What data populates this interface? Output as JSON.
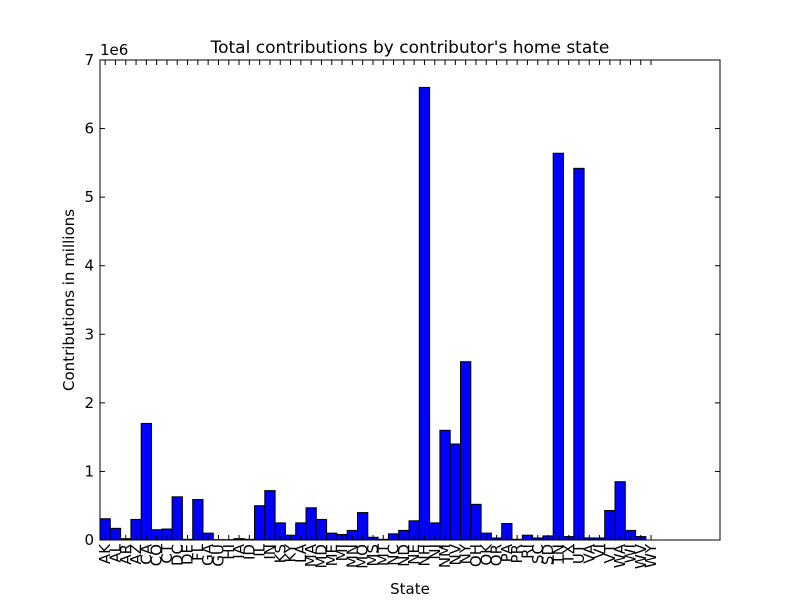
{
  "chart_data": {
    "type": "bar",
    "title": "Total contributions by contributor's home state",
    "xlabel": "State",
    "ylabel": "Contributions in millions",
    "y_offset_label": "1e6",
    "ylim": [
      0,
      7000000
    ],
    "yticks": [
      {
        "value": 0,
        "label": "0"
      },
      {
        "value": 1000000,
        "label": "1"
      },
      {
        "value": 2000000,
        "label": "2"
      },
      {
        "value": 3000000,
        "label": "3"
      },
      {
        "value": 4000000,
        "label": "4"
      },
      {
        "value": 5000000,
        "label": "5"
      },
      {
        "value": 6000000,
        "label": "6"
      },
      {
        "value": 7000000,
        "label": "7"
      }
    ],
    "grid": false,
    "bar_color": "#0000ff",
    "categories": [
      "AK",
      "AL",
      "AR",
      "AZ",
      "CA",
      "CO",
      "CT",
      "DC",
      "DE",
      "FL",
      "GA",
      "GU",
      "HI",
      "IA",
      "ID",
      "IL",
      "IN",
      "KS",
      "KY",
      "LA",
      "MA",
      "MD",
      "ME",
      "MI",
      "MN",
      "MO",
      "MS",
      "MT",
      "NC",
      "ND",
      "NE",
      "NH",
      "NJ",
      "NM",
      "NV",
      "NY",
      "OH",
      "OK",
      "OR",
      "PA",
      "PR",
      "RI",
      "SC",
      "SD",
      "TN",
      "TX",
      "UT",
      "VA",
      "VI",
      "VT",
      "WA",
      "WI",
      "WV",
      "WY"
    ],
    "values": [
      310000,
      170000,
      20000,
      300000,
      1700000,
      150000,
      160000,
      630000,
      10000,
      590000,
      100000,
      5000,
      5000,
      20000,
      10000,
      500000,
      720000,
      250000,
      70000,
      250000,
      470000,
      300000,
      100000,
      80000,
      140000,
      400000,
      40000,
      10000,
      90000,
      140000,
      280000,
      6600000,
      250000,
      1600000,
      1400000,
      2600000,
      520000,
      100000,
      30000,
      240000,
      10000,
      70000,
      30000,
      60000,
      5640000,
      50000,
      5420000,
      30000,
      30000,
      430000,
      850000,
      140000,
      50000,
      0
    ]
  }
}
